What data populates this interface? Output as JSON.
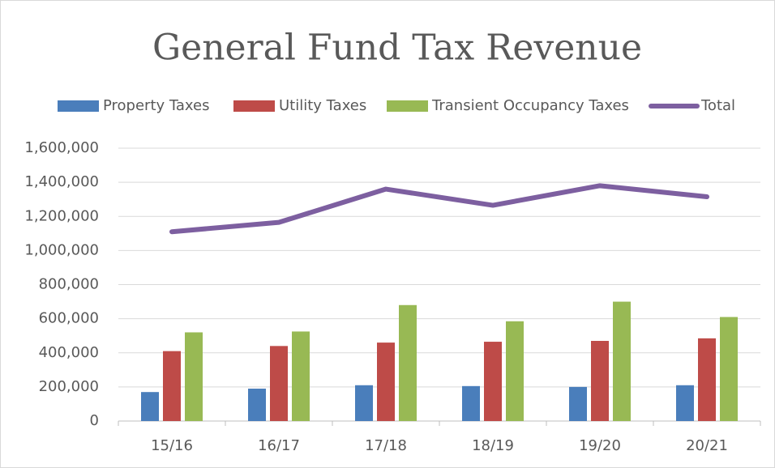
{
  "chart_data": {
    "type": "bar",
    "title": "General Fund Tax Revenue",
    "categories": [
      "15/16",
      "16/17",
      "17/18",
      "18/19",
      "19/20",
      "20/21"
    ],
    "series": [
      {
        "name": "Property Taxes",
        "type": "bar",
        "color": "#4a7ebb",
        "values": [
          170000,
          190000,
          210000,
          205000,
          200000,
          210000
        ]
      },
      {
        "name": "Utility Taxes",
        "type": "bar",
        "color": "#be4b48",
        "values": [
          410000,
          440000,
          460000,
          465000,
          470000,
          485000
        ]
      },
      {
        "name": "Transient Occupancy Taxes",
        "type": "bar",
        "color": "#98b954",
        "values": [
          520000,
          525000,
          680000,
          585000,
          700000,
          610000
        ]
      },
      {
        "name": "Total",
        "type": "line",
        "color": "#7d5fa0",
        "values": [
          1110000,
          1165000,
          1360000,
          1265000,
          1380000,
          1315000
        ]
      }
    ],
    "ylim": [
      0,
      1600000
    ],
    "yticks": [
      0,
      {
        "value": 200000,
        "label": "200,000"
      },
      {
        "value": 400000,
        "label": "400,000"
      },
      {
        "value": 600000,
        "label": "600,000"
      },
      {
        "value": 800000,
        "label": "800,000"
      },
      {
        "value": 1000000,
        "label": "1,000,000"
      },
      {
        "value": 1200000,
        "label": "1,200,000"
      },
      {
        "value": 1400000,
        "label": "1,400,000"
      },
      {
        "value": 1600000,
        "label": "1,600,000"
      }
    ],
    "grid": true,
    "legend": "top"
  }
}
